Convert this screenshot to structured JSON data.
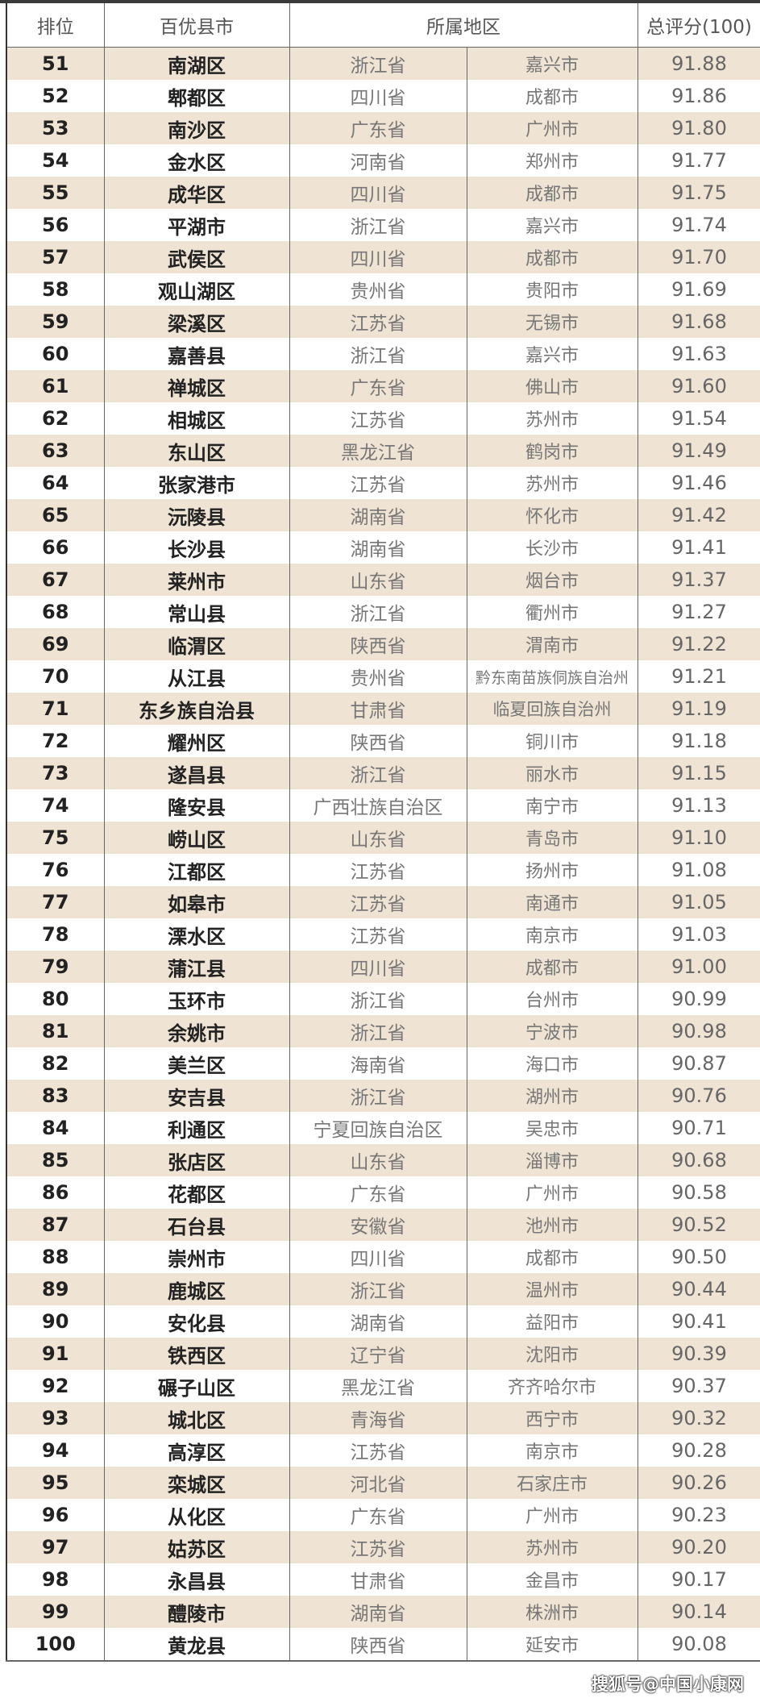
{
  "header": {
    "rank": "排位",
    "county": "百优县市",
    "region": "所属地区",
    "score": "总评分(100)"
  },
  "rows": [
    [
      "51",
      "南湖区",
      "浙江省",
      "嘉兴市",
      "91.88"
    ],
    [
      "52",
      "郫都区",
      "四川省",
      "成都市",
      "91.86"
    ],
    [
      "53",
      "南沙区",
      "广东省",
      "广州市",
      "91.80"
    ],
    [
      "54",
      "金水区",
      "河南省",
      "郑州市",
      "91.77"
    ],
    [
      "55",
      "成华区",
      "四川省",
      "成都市",
      "91.75"
    ],
    [
      "56",
      "平湖市",
      "浙江省",
      "嘉兴市",
      "91.74"
    ],
    [
      "57",
      "武侯区",
      "四川省",
      "成都市",
      "91.70"
    ],
    [
      "58",
      "观山湖区",
      "贵州省",
      "贵阳市",
      "91.69"
    ],
    [
      "59",
      "梁溪区",
      "江苏省",
      "无锡市",
      "91.68"
    ],
    [
      "60",
      "嘉善县",
      "浙江省",
      "嘉兴市",
      "91.63"
    ],
    [
      "61",
      "禅城区",
      "广东省",
      "佛山市",
      "91.60"
    ],
    [
      "62",
      "相城区",
      "江苏省",
      "苏州市",
      "91.54"
    ],
    [
      "63",
      "东山区",
      "黑龙江省",
      "鹤岗市",
      "91.49"
    ],
    [
      "64",
      "张家港市",
      "江苏省",
      "苏州市",
      "91.46"
    ],
    [
      "65",
      "沅陵县",
      "湖南省",
      "怀化市",
      "91.42"
    ],
    [
      "66",
      "长沙县",
      "湖南省",
      "长沙市",
      "91.41"
    ],
    [
      "67",
      "莱州市",
      "山东省",
      "烟台市",
      "91.37"
    ],
    [
      "68",
      "常山县",
      "浙江省",
      "衢州市",
      "91.27"
    ],
    [
      "69",
      "临渭区",
      "陕西省",
      "渭南市",
      "91.22"
    ],
    [
      "70",
      "从江县",
      "贵州省",
      "黔东南苗族侗族自治州",
      "91.21"
    ],
    [
      "71",
      "东乡族自治县",
      "甘肃省",
      "临夏回族自治州",
      "91.19"
    ],
    [
      "72",
      "耀州区",
      "陕西省",
      "铜川市",
      "91.18"
    ],
    [
      "73",
      "遂昌县",
      "浙江省",
      "丽水市",
      "91.15"
    ],
    [
      "74",
      "隆安县",
      "广西壮族自治区",
      "南宁市",
      "91.13"
    ],
    [
      "75",
      "崂山区",
      "山东省",
      "青岛市",
      "91.10"
    ],
    [
      "76",
      "江都区",
      "江苏省",
      "扬州市",
      "91.08"
    ],
    [
      "77",
      "如皋市",
      "江苏省",
      "南通市",
      "91.05"
    ],
    [
      "78",
      "溧水区",
      "江苏省",
      "南京市",
      "91.03"
    ],
    [
      "79",
      "蒲江县",
      "四川省",
      "成都市",
      "91.00"
    ],
    [
      "80",
      "玉环市",
      "浙江省",
      "台州市",
      "90.99"
    ],
    [
      "81",
      "余姚市",
      "浙江省",
      "宁波市",
      "90.98"
    ],
    [
      "82",
      "美兰区",
      "海南省",
      "海口市",
      "90.87"
    ],
    [
      "83",
      "安吉县",
      "浙江省",
      "湖州市",
      "90.76"
    ],
    [
      "84",
      "利通区",
      "宁夏回族自治区",
      "吴忠市",
      "90.71"
    ],
    [
      "85",
      "张店区",
      "山东省",
      "淄博市",
      "90.68"
    ],
    [
      "86",
      "花都区",
      "广东省",
      "广州市",
      "90.58"
    ],
    [
      "87",
      "石台县",
      "安徽省",
      "池州市",
      "90.52"
    ],
    [
      "88",
      "崇州市",
      "四川省",
      "成都市",
      "90.50"
    ],
    [
      "89",
      "鹿城区",
      "浙江省",
      "温州市",
      "90.44"
    ],
    [
      "90",
      "安化县",
      "湖南省",
      "益阳市",
      "90.41"
    ],
    [
      "91",
      "铁西区",
      "辽宁省",
      "沈阳市",
      "90.39"
    ],
    [
      "92",
      "碾子山区",
      "黑龙江省",
      "齐齐哈尔市",
      "90.37"
    ],
    [
      "93",
      "城北区",
      "青海省",
      "西宁市",
      "90.32"
    ],
    [
      "94",
      "高淳区",
      "江苏省",
      "南京市",
      "90.28"
    ],
    [
      "95",
      "栾城区",
      "河北省",
      "石家庄市",
      "90.26"
    ],
    [
      "96",
      "从化区",
      "广东省",
      "广州市",
      "90.23"
    ],
    [
      "97",
      "姑苏区",
      "江苏省",
      "苏州市",
      "90.20"
    ],
    [
      "98",
      "永昌县",
      "甘肃省",
      "金昌市",
      "90.17"
    ],
    [
      "99",
      "醴陵市",
      "湖南省",
      "株洲市",
      "90.14"
    ],
    [
      "100",
      "黄龙县",
      "陕西省",
      "延安市",
      "90.08"
    ]
  ],
  "watermark": "搜狐号@中国小康网",
  "colors": {
    "stripe": "#efe3d3",
    "text_bold": "#222222",
    "text_light": "#777777"
  }
}
